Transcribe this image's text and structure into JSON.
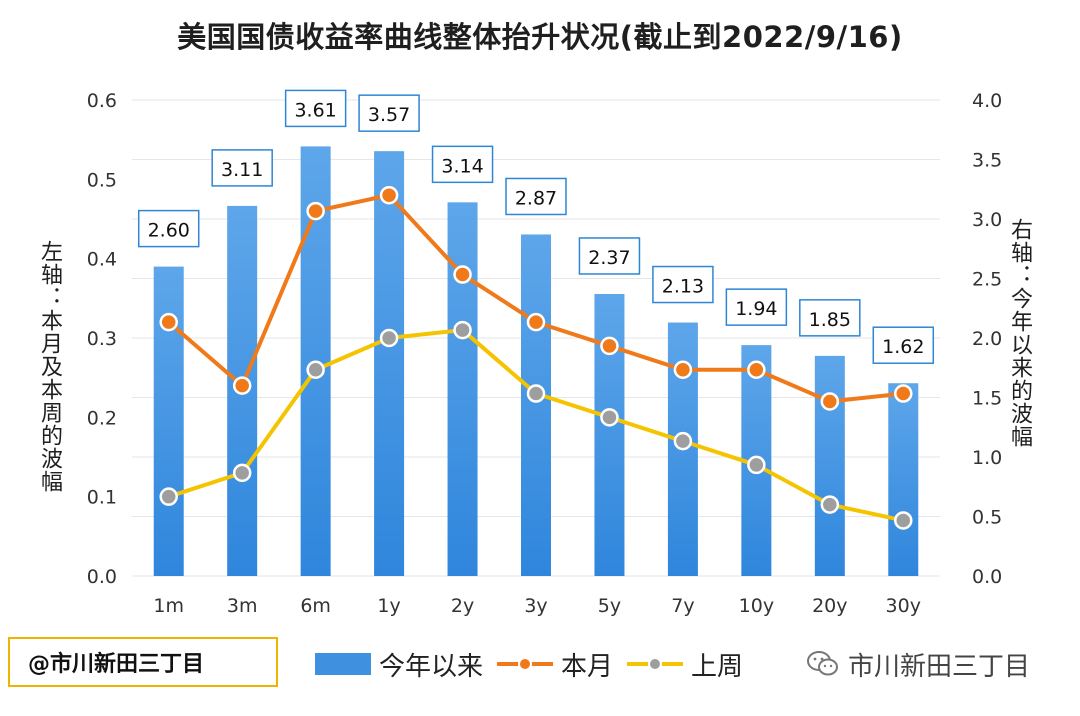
{
  "title": "美国国债收益率曲线整体抬升状况(截止到2022/9/16)",
  "left_axis_label": "左轴：本月及本周的波幅",
  "right_axis_label": "右轴：今年以来的波幅",
  "watermark": "@市川新田三丁目",
  "brand": "市川新田三丁目",
  "icons": {
    "brand": "wechat-icon"
  },
  "colors": {
    "bar": "#3f90de",
    "bar_light": "#5ea6ea",
    "current_month": "#f07a1a",
    "last_week": "#f5c400",
    "marker_fill_month": "#f07a1a",
    "marker_fill_week": "#9e9e9e",
    "label_border": "#2e86d6"
  },
  "chart_data": {
    "type": "bar",
    "categories": [
      "1m",
      "3m",
      "6m",
      "1y",
      "2y",
      "3y",
      "5y",
      "7y",
      "10y",
      "20y",
      "30y"
    ],
    "y_left": {
      "min": 0.0,
      "max": 0.6,
      "ticks": [
        "0.0",
        "0.1",
        "0.2",
        "0.3",
        "0.4",
        "0.5",
        "0.6"
      ]
    },
    "y_right": {
      "min": 0.0,
      "max": 4.0,
      "ticks": [
        "0.0",
        "0.5",
        "1.0",
        "1.5",
        "2.0",
        "2.5",
        "3.0",
        "3.5",
        "4.0"
      ]
    },
    "grid": true,
    "legend_position": "bottom",
    "series": [
      {
        "name": "今年以来",
        "type": "bar",
        "axis": "right",
        "values": [
          2.6,
          3.11,
          3.61,
          3.57,
          3.14,
          2.87,
          2.37,
          2.13,
          1.94,
          1.85,
          1.62
        ],
        "labels": [
          "2.60",
          "3.11",
          "3.61",
          "3.57",
          "3.14",
          "2.87",
          "2.37",
          "2.13",
          "1.94",
          "1.85",
          "1.62"
        ]
      },
      {
        "name": "本月",
        "type": "line",
        "axis": "left",
        "values": [
          0.32,
          0.24,
          0.46,
          0.48,
          0.38,
          0.32,
          0.29,
          0.26,
          0.26,
          0.22,
          0.23
        ]
      },
      {
        "name": "上周",
        "type": "line",
        "axis": "left",
        "values": [
          0.1,
          0.13,
          0.26,
          0.3,
          0.31,
          0.23,
          0.2,
          0.17,
          0.14,
          0.09,
          0.07
        ]
      }
    ]
  }
}
